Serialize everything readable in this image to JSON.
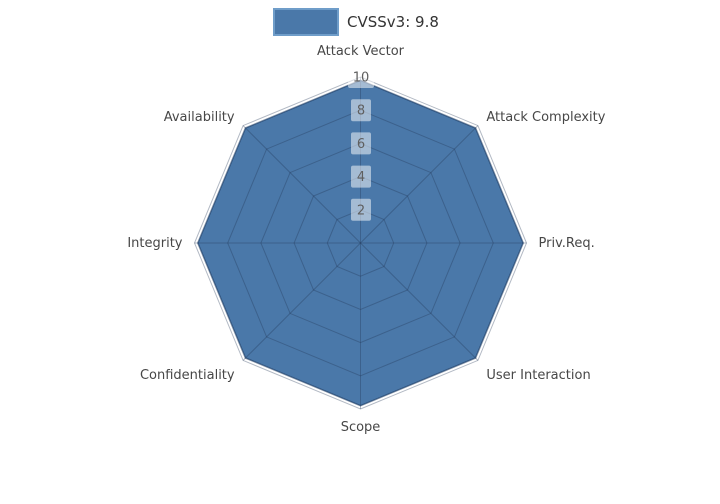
{
  "chart_data": {
    "type": "radar",
    "title": "",
    "legend_position": "top-center",
    "categories": [
      "Attack Vector",
      "Attack Complexity",
      "Priv.Req.",
      "User Interaction",
      "Scope",
      "Confidentiality",
      "Integrity",
      "Availability"
    ],
    "series": [
      {
        "name": "CVSSv3: 9.8",
        "values": [
          9.8,
          9.8,
          9.8,
          9.8,
          9.8,
          9.8,
          9.8,
          9.8
        ]
      }
    ],
    "radial_axis": {
      "min": 0,
      "max": 10,
      "ticks": [
        2,
        4,
        6,
        8,
        10
      ]
    },
    "grid": "on",
    "colors": {
      "fill": "#4a78a9",
      "outline": "rgba(25,55,95,0.6)",
      "grid_line": "rgba(35,55,85,0.35)",
      "tick_bg": "rgba(255,255,255,0.5)",
      "tick_text": "#5f5f5f",
      "label_text": "#474747",
      "legend_line": "#6f9dc9",
      "legend_text": "#333333"
    }
  }
}
